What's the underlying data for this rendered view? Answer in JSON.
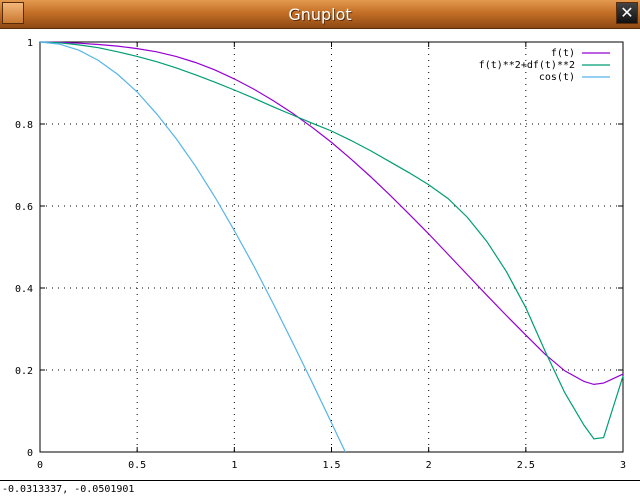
{
  "window": {
    "title": "Gnuplot",
    "close_glyph": "✕"
  },
  "status": {
    "coordinates": "-0.0313337, -0.0501901"
  },
  "chart_data": {
    "type": "line",
    "title": "",
    "xlabel": "",
    "ylabel": "",
    "xlim": [
      0,
      3
    ],
    "ylim": [
      0,
      1
    ],
    "grid": true,
    "legend_position": "top-right",
    "x_ticks": [
      "0",
      "0.5",
      "1",
      "1.5",
      "2",
      "2.5",
      "3"
    ],
    "y_ticks": [
      "0",
      "0.2",
      "0.4",
      "0.6",
      "0.8",
      "1"
    ],
    "series": [
      {
        "name": "f(t)",
        "color": "#9400d3",
        "x": [
          0,
          0.1,
          0.2,
          0.3,
          0.4,
          0.5,
          0.6,
          0.7,
          0.8,
          0.9,
          1.0,
          1.1,
          1.2,
          1.3,
          1.4,
          1.5,
          1.6,
          1.7,
          1.8,
          1.9,
          2.0,
          2.1,
          2.2,
          2.3,
          2.4,
          2.5,
          2.6,
          2.7,
          2.8,
          2.85,
          2.9,
          3.0
        ],
        "y": [
          1.0,
          0.999,
          0.997,
          0.994,
          0.99,
          0.984,
          0.976,
          0.965,
          0.95,
          0.932,
          0.91,
          0.885,
          0.857,
          0.826,
          0.792,
          0.755,
          0.715,
          0.672,
          0.627,
          0.58,
          0.532,
          0.482,
          0.432,
          0.382,
          0.333,
          0.285,
          0.238,
          0.198,
          0.172,
          0.165,
          0.168,
          0.19
        ]
      },
      {
        "name": "f(t)**2+df(t)**2",
        "color": "#009e73",
        "x": [
          0,
          0.1,
          0.2,
          0.3,
          0.4,
          0.5,
          0.6,
          0.7,
          0.8,
          0.9,
          1.0,
          1.1,
          1.2,
          1.3,
          1.4,
          1.5,
          1.6,
          1.7,
          1.8,
          1.9,
          2.0,
          2.1,
          2.2,
          2.3,
          2.4,
          2.5,
          2.6,
          2.7,
          2.8,
          2.85,
          2.9,
          3.0
        ],
        "y": [
          1.0,
          0.998,
          0.993,
          0.986,
          0.976,
          0.965,
          0.952,
          0.937,
          0.92,
          0.902,
          0.883,
          0.863,
          0.842,
          0.822,
          0.802,
          0.783,
          0.76,
          0.735,
          0.708,
          0.681,
          0.652,
          0.618,
          0.572,
          0.513,
          0.44,
          0.352,
          0.245,
          0.145,
          0.065,
          0.032,
          0.035,
          0.185
        ]
      },
      {
        "name": "cos(t)",
        "color": "#56b4e9",
        "x": [
          0,
          0.1,
          0.2,
          0.3,
          0.4,
          0.5,
          0.6,
          0.7,
          0.8,
          0.9,
          1.0,
          1.1,
          1.2,
          1.3,
          1.4,
          1.5,
          1.5708
        ],
        "y": [
          1.0,
          0.995,
          0.98,
          0.955,
          0.921,
          0.878,
          0.825,
          0.765,
          0.697,
          0.622,
          0.54,
          0.454,
          0.362,
          0.267,
          0.17,
          0.071,
          0.0
        ]
      }
    ]
  }
}
